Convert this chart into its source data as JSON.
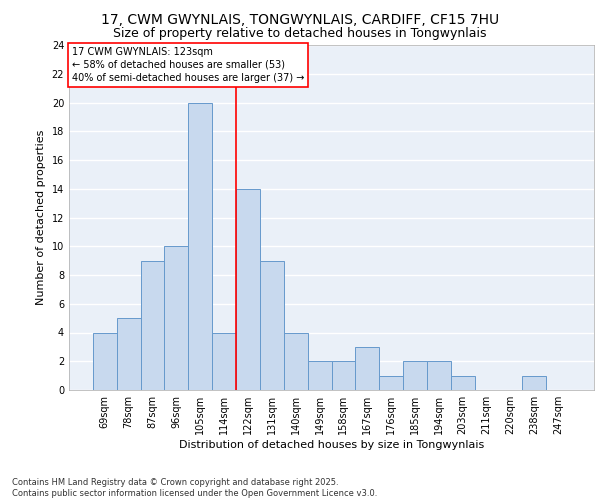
{
  "title1": "17, CWM GWYNLAIS, TONGWYNLAIS, CARDIFF, CF15 7HU",
  "title2": "Size of property relative to detached houses in Tongwynlais",
  "xlabel": "Distribution of detached houses by size in Tongwynlais",
  "ylabel": "Number of detached properties",
  "categories": [
    "69sqm",
    "78sqm",
    "87sqm",
    "96sqm",
    "105sqm",
    "114sqm",
    "122sqm",
    "131sqm",
    "140sqm",
    "149sqm",
    "158sqm",
    "167sqm",
    "176sqm",
    "185sqm",
    "194sqm",
    "203sqm",
    "211sqm",
    "220sqm",
    "238sqm",
    "247sqm"
  ],
  "values": [
    4,
    5,
    9,
    10,
    20,
    4,
    14,
    9,
    4,
    2,
    2,
    3,
    1,
    2,
    2,
    1,
    0,
    0,
    1,
    0
  ],
  "bar_color": "#c8d9ee",
  "bar_edge_color": "#6699cc",
  "vline_x": 5.5,
  "vline_color": "red",
  "annotation_box_text": "17 CWM GWYNLAIS: 123sqm\n← 58% of detached houses are smaller (53)\n40% of semi-detached houses are larger (37) →",
  "ylim": [
    0,
    24
  ],
  "yticks": [
    0,
    2,
    4,
    6,
    8,
    10,
    12,
    14,
    16,
    18,
    20,
    22,
    24
  ],
  "footnote": "Contains HM Land Registry data © Crown copyright and database right 2025.\nContains public sector information licensed under the Open Government Licence v3.0.",
  "bg_color": "#eaf0f8",
  "grid_color": "#ffffff",
  "title_fontsize": 10,
  "subtitle_fontsize": 9,
  "tick_fontsize": 7,
  "label_fontsize": 8,
  "annot_fontsize": 7,
  "footnote_fontsize": 6
}
